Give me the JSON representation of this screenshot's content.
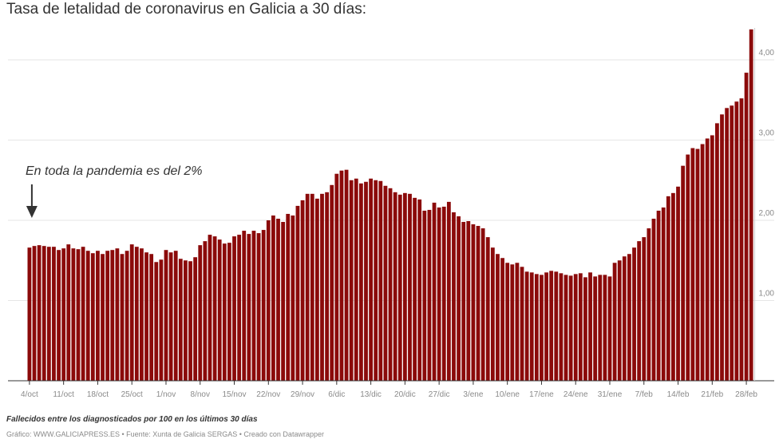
{
  "header": {
    "title": "Tasa de letalidad de coronavirus en Galicia a 30 días:"
  },
  "footer": {
    "note": "Fallecidos entre los diagnosticados por 100 en los últimos 30 días",
    "credit": "Gráfico: WWW.GALICIAPRESS.ES • Fuente: Xunta de Galicia SERGAS • Creado con Datawrapper"
  },
  "colors": {
    "bar": "#8b0a0a",
    "grid": "#e6e6e6",
    "axis": "#333333",
    "tick_text": "#8a8a8a"
  },
  "chart_data": {
    "type": "bar",
    "title": "Tasa de letalidad de coronavirus en Galicia a 30 días:",
    "ylim": [
      0,
      4.4
    ],
    "grid": true,
    "y_axis_side": "right",
    "y_ticks": [
      {
        "value": 1,
        "label": "1,00"
      },
      {
        "value": 2,
        "label": "2,00"
      },
      {
        "value": 3,
        "label": "3,00"
      },
      {
        "value": 4,
        "label": "4,00"
      }
    ],
    "x_ticks": [
      {
        "index": 0,
        "label": "4/oct"
      },
      {
        "index": 7,
        "label": "11/oct"
      },
      {
        "index": 14,
        "label": "18/oct"
      },
      {
        "index": 21,
        "label": "25/oct"
      },
      {
        "index": 28,
        "label": "1/nov"
      },
      {
        "index": 35,
        "label": "8/nov"
      },
      {
        "index": 42,
        "label": "15/nov"
      },
      {
        "index": 49,
        "label": "22/nov"
      },
      {
        "index": 56,
        "label": "29/nov"
      },
      {
        "index": 63,
        "label": "6/dic"
      },
      {
        "index": 70,
        "label": "13/dic"
      },
      {
        "index": 77,
        "label": "20/dic"
      },
      {
        "index": 84,
        "label": "27/dic"
      },
      {
        "index": 91,
        "label": "3/ene"
      },
      {
        "index": 98,
        "label": "10/ene"
      },
      {
        "index": 105,
        "label": "17/ene"
      },
      {
        "index": 112,
        "label": "24/ene"
      },
      {
        "index": 119,
        "label": "31/ene"
      },
      {
        "index": 126,
        "label": "7/feb"
      },
      {
        "index": 133,
        "label": "14/feb"
      },
      {
        "index": 140,
        "label": "21/feb"
      },
      {
        "index": 147,
        "label": "28/feb"
      }
    ],
    "annotation": {
      "text": "En toda la pandemia es del 2%",
      "index": 0
    },
    "values": [
      1.66,
      1.68,
      1.69,
      1.68,
      1.67,
      1.67,
      1.63,
      1.65,
      1.7,
      1.65,
      1.64,
      1.67,
      1.62,
      1.59,
      1.62,
      1.58,
      1.62,
      1.63,
      1.65,
      1.58,
      1.62,
      1.7,
      1.67,
      1.65,
      1.6,
      1.58,
      1.48,
      1.51,
      1.63,
      1.6,
      1.62,
      1.52,
      1.5,
      1.49,
      1.54,
      1.69,
      1.74,
      1.82,
      1.8,
      1.76,
      1.71,
      1.72,
      1.8,
      1.82,
      1.87,
      1.83,
      1.87,
      1.84,
      1.88,
      2.0,
      2.06,
      2.02,
      1.98,
      2.08,
      2.06,
      2.18,
      2.25,
      2.33,
      2.33,
      2.27,
      2.33,
      2.35,
      2.44,
      2.58,
      2.62,
      2.63,
      2.5,
      2.52,
      2.46,
      2.48,
      2.52,
      2.5,
      2.49,
      2.43,
      2.4,
      2.35,
      2.32,
      2.34,
      2.33,
      2.28,
      2.26,
      2.12,
      2.13,
      2.22,
      2.16,
      2.17,
      2.23,
      2.1,
      2.05,
      1.98,
      1.99,
      1.95,
      1.93,
      1.9,
      1.79,
      1.66,
      1.58,
      1.53,
      1.47,
      1.45,
      1.47,
      1.42,
      1.36,
      1.35,
      1.33,
      1.32,
      1.35,
      1.37,
      1.36,
      1.34,
      1.32,
      1.31,
      1.33,
      1.34,
      1.29,
      1.35,
      1.3,
      1.32,
      1.32,
      1.3,
      1.47,
      1.5,
      1.55,
      1.58,
      1.66,
      1.74,
      1.79,
      1.9,
      2.02,
      2.12,
      2.16,
      2.3,
      2.34,
      2.42,
      2.68,
      2.82,
      2.9,
      2.89,
      2.95,
      3.02,
      3.06,
      3.21,
      3.32,
      3.4,
      3.43,
      3.48,
      3.52,
      3.84,
      4.38
    ]
  }
}
